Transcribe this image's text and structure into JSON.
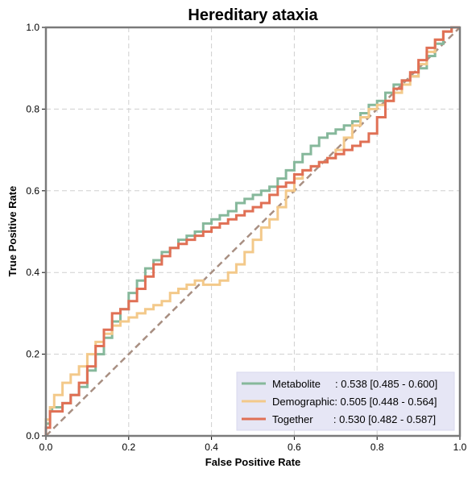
{
  "chart_data": {
    "type": "line",
    "title": "Hereditary ataxia",
    "xlabel": "False Positive Rate",
    "ylabel": "True Positive Rate",
    "xlim": [
      0,
      1
    ],
    "ylim": [
      0,
      1
    ],
    "xticks": [
      "0.0",
      "0.2",
      "0.4",
      "0.6",
      "0.8",
      "1.0"
    ],
    "yticks": [
      "0.0",
      "0.2",
      "0.4",
      "0.6",
      "0.8",
      "1.0"
    ],
    "grid": true,
    "legend_position": "bottom-right",
    "reference_line": {
      "x": [
        0,
        1
      ],
      "y": [
        0,
        1
      ],
      "color": "#a88f82"
    },
    "series": [
      {
        "name": "Metabolite",
        "legend_label": "Metabolite     : 0.538 [0.485 - 0.600]",
        "color": "#86b89b",
        "x": [
          0,
          0.01,
          0.015,
          0.02,
          0.04,
          0.06,
          0.08,
          0.1,
          0.12,
          0.14,
          0.16,
          0.18,
          0.2,
          0.22,
          0.24,
          0.26,
          0.28,
          0.3,
          0.32,
          0.34,
          0.36,
          0.38,
          0.4,
          0.42,
          0.44,
          0.46,
          0.48,
          0.5,
          0.52,
          0.54,
          0.56,
          0.58,
          0.6,
          0.62,
          0.64,
          0.66,
          0.68,
          0.7,
          0.72,
          0.74,
          0.76,
          0.78,
          0.8,
          0.82,
          0.84,
          0.86,
          0.88,
          0.9,
          0.92,
          0.94,
          0.96,
          0.98,
          1.0
        ],
        "y": [
          0,
          0.03,
          0.06,
          0.07,
          0.07,
          0.08,
          0.1,
          0.12,
          0.16,
          0.2,
          0.24,
          0.28,
          0.31,
          0.35,
          0.38,
          0.41,
          0.43,
          0.45,
          0.46,
          0.48,
          0.49,
          0.5,
          0.52,
          0.53,
          0.54,
          0.55,
          0.57,
          0.58,
          0.59,
          0.6,
          0.61,
          0.63,
          0.65,
          0.67,
          0.69,
          0.71,
          0.73,
          0.74,
          0.75,
          0.76,
          0.77,
          0.79,
          0.81,
          0.82,
          0.84,
          0.86,
          0.87,
          0.88,
          0.9,
          0.93,
          0.96,
          0.99,
          1.0
        ]
      },
      {
        "name": "Demographic",
        "legend_label": "Demographic: 0.505 [0.448 - 0.564]",
        "color": "#f3c98a",
        "x": [
          0,
          0.01,
          0.02,
          0.04,
          0.06,
          0.08,
          0.1,
          0.12,
          0.14,
          0.16,
          0.18,
          0.2,
          0.22,
          0.24,
          0.26,
          0.28,
          0.3,
          0.32,
          0.34,
          0.36,
          0.38,
          0.4,
          0.42,
          0.44,
          0.46,
          0.48,
          0.5,
          0.52,
          0.54,
          0.56,
          0.58,
          0.6,
          0.62,
          0.64,
          0.66,
          0.68,
          0.7,
          0.72,
          0.74,
          0.76,
          0.78,
          0.8,
          0.82,
          0.84,
          0.86,
          0.88,
          0.9,
          0.92,
          0.94,
          0.96,
          0.98,
          1.0
        ],
        "y": [
          0,
          0.04,
          0.07,
          0.1,
          0.13,
          0.15,
          0.17,
          0.2,
          0.23,
          0.25,
          0.27,
          0.28,
          0.29,
          0.3,
          0.31,
          0.32,
          0.33,
          0.35,
          0.36,
          0.37,
          0.38,
          0.37,
          0.37,
          0.38,
          0.4,
          0.42,
          0.45,
          0.48,
          0.51,
          0.53,
          0.56,
          0.6,
          0.63,
          0.65,
          0.66,
          0.67,
          0.68,
          0.7,
          0.73,
          0.76,
          0.78,
          0.8,
          0.81,
          0.82,
          0.84,
          0.86,
          0.88,
          0.91,
          0.94,
          0.97,
          0.99,
          1.0
        ]
      },
      {
        "name": "Together",
        "legend_label": "Together       : 0.530 [0.482 - 0.587]",
        "color": "#e07055",
        "x": [
          0,
          0.01,
          0.02,
          0.04,
          0.06,
          0.08,
          0.1,
          0.12,
          0.14,
          0.16,
          0.18,
          0.2,
          0.22,
          0.24,
          0.26,
          0.28,
          0.3,
          0.32,
          0.34,
          0.36,
          0.38,
          0.4,
          0.42,
          0.44,
          0.46,
          0.48,
          0.5,
          0.52,
          0.54,
          0.56,
          0.58,
          0.6,
          0.62,
          0.64,
          0.66,
          0.68,
          0.7,
          0.72,
          0.74,
          0.76,
          0.78,
          0.8,
          0.82,
          0.84,
          0.86,
          0.88,
          0.9,
          0.92,
          0.94,
          0.96,
          0.98,
          1.0
        ],
        "y": [
          0,
          0.02,
          0.06,
          0.06,
          0.08,
          0.1,
          0.13,
          0.17,
          0.22,
          0.26,
          0.3,
          0.31,
          0.33,
          0.36,
          0.39,
          0.42,
          0.44,
          0.46,
          0.47,
          0.48,
          0.49,
          0.5,
          0.51,
          0.52,
          0.53,
          0.54,
          0.55,
          0.56,
          0.57,
          0.59,
          0.61,
          0.62,
          0.64,
          0.65,
          0.66,
          0.67,
          0.68,
          0.69,
          0.7,
          0.71,
          0.72,
          0.74,
          0.78,
          0.82,
          0.85,
          0.87,
          0.89,
          0.92,
          0.95,
          0.97,
          0.99,
          1.0
        ]
      }
    ]
  }
}
